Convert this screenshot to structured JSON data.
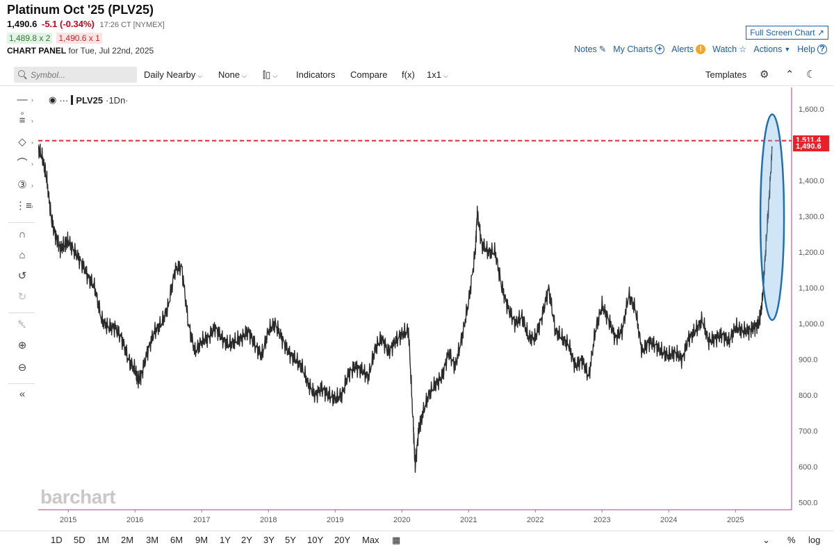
{
  "header": {
    "title": "Platinum Oct '25 (PLV25)",
    "last": "1,490.6",
    "change": "-5.1 (-0.34%)",
    "time": "17:26 CT [NYMEX]",
    "bid": "1,489.8 x 2",
    "ask": "1,490.6 x 1",
    "panel_label": "CHART PANEL",
    "panel_date": "for Tue, Jul 22nd, 2025",
    "fullscreen": "Full Screen Chart",
    "links": {
      "notes": "Notes",
      "mycharts": "My Charts",
      "alerts": "Alerts",
      "watch": "Watch",
      "actions": "Actions",
      "help": "Help"
    }
  },
  "toolbar": {
    "symbol_placeholder": "Symbol...",
    "interval": "Daily Nearby",
    "overlay": "None",
    "indicators": "Indicators",
    "compare": "Compare",
    "fx": "f(x)",
    "layout": "1x1",
    "templates": "Templates"
  },
  "legend": {
    "symbol": "PLV25",
    "interval": "·1Dn·"
  },
  "watermark": "barchart",
  "price_tags": {
    "high": "1,511.4",
    "last": "1,490.6"
  },
  "bottom": {
    "ranges": [
      "1D",
      "5D",
      "1M",
      "2M",
      "3M",
      "6M",
      "9M",
      "1Y",
      "2Y",
      "3Y",
      "5Y",
      "10Y",
      "20Y",
      "Max"
    ],
    "pct": "%",
    "log": "log"
  },
  "colors": {
    "accent": "#1a5ea8",
    "down": "#d0021b",
    "ref_line": "#e8202a",
    "axis": "#b03a8c",
    "highlight": "#1f6fb2"
  },
  "chart_data": {
    "type": "line",
    "title": "",
    "xlabel": "",
    "ylabel": "",
    "ylim": [
      480,
      1660
    ],
    "yticks": [
      500,
      600,
      700,
      800,
      900,
      1000,
      1100,
      1200,
      1300,
      1400,
      1500,
      1600
    ],
    "ytick_labels": [
      "500.0",
      "600.0",
      "700.0",
      "800.0",
      "900.0",
      "1,000.0",
      "1,100.0",
      "1,200.0",
      "1,300.0",
      "1,400.0",
      "1,500.0",
      "1,600.0"
    ],
    "xlim": [
      2014.55,
      2025.82
    ],
    "xticks": [
      2015,
      2016,
      2017,
      2018,
      2019,
      2020,
      2021,
      2022,
      2023,
      2024,
      2025
    ],
    "xtick_labels": [
      "2015",
      "2016",
      "2017",
      "2018",
      "2019",
      "2020",
      "2021",
      "2022",
      "2023",
      "2024",
      "2025"
    ],
    "reference_line": 1511.4,
    "grid": false,
    "series": [
      {
        "x": [
          2014.55,
          2014.62,
          2014.68,
          2014.75,
          2014.82,
          2014.88,
          2014.95,
          2015.0,
          2015.1,
          2015.2,
          2015.3,
          2015.4,
          2015.5,
          2015.6,
          2015.7,
          2015.8,
          2015.9,
          2016.0,
          2016.05,
          2016.1,
          2016.2,
          2016.3,
          2016.4,
          2016.5,
          2016.6,
          2016.7,
          2016.8,
          2016.9,
          2017.0,
          2017.1,
          2017.2,
          2017.3,
          2017.4,
          2017.5,
          2017.6,
          2017.7,
          2017.8,
          2017.9,
          2018.0,
          2018.1,
          2018.2,
          2018.3,
          2018.4,
          2018.5,
          2018.6,
          2018.7,
          2018.8,
          2018.9,
          2019.0,
          2019.1,
          2019.2,
          2019.3,
          2019.4,
          2019.5,
          2019.6,
          2019.7,
          2019.8,
          2019.9,
          2020.0,
          2020.1,
          2020.17,
          2020.2,
          2020.25,
          2020.3,
          2020.4,
          2020.5,
          2020.6,
          2020.7,
          2020.8,
          2020.9,
          2021.0,
          2021.1,
          2021.13,
          2021.2,
          2021.3,
          2021.4,
          2021.5,
          2021.6,
          2021.7,
          2021.8,
          2021.9,
          2022.0,
          2022.1,
          2022.2,
          2022.3,
          2022.4,
          2022.5,
          2022.6,
          2022.7,
          2022.8,
          2022.9,
          2023.0,
          2023.1,
          2023.2,
          2023.3,
          2023.4,
          2023.5,
          2023.6,
          2023.7,
          2023.8,
          2023.9,
          2024.0,
          2024.1,
          2024.2,
          2024.3,
          2024.4,
          2024.5,
          2024.6,
          2024.7,
          2024.8,
          2024.9,
          2025.0,
          2025.1,
          2025.2,
          2025.28,
          2025.35,
          2025.4,
          2025.45,
          2025.5,
          2025.55
        ],
        "y": [
          1490,
          1460,
          1400,
          1290,
          1240,
          1210,
          1220,
          1230,
          1200,
          1170,
          1130,
          1100,
          1010,
          990,
          990,
          960,
          900,
          870,
          840,
          860,
          930,
          980,
          1000,
          1050,
          1150,
          1160,
          1000,
          920,
          950,
          960,
          990,
          960,
          940,
          950,
          960,
          980,
          940,
          910,
          980,
          1000,
          960,
          920,
          900,
          880,
          830,
          800,
          820,
          800,
          790,
          800,
          860,
          880,
          870,
          850,
          930,
          960,
          920,
          950,
          970,
          980,
          720,
          600,
          700,
          740,
          800,
          830,
          850,
          920,
          880,
          960,
          1060,
          1200,
          1310,
          1220,
          1200,
          1200,
          1100,
          1040,
          1000,
          1020,
          960,
          960,
          1020,
          1100,
          980,
          960,
          940,
          880,
          900,
          850,
          980,
          1050,
          1010,
          960,
          980,
          1080,
          1040,
          920,
          950,
          940,
          920,
          910,
          920,
          900,
          960,
          980,
          1010,
          950,
          960,
          970,
          950,
          990,
          980,
          980,
          990,
          1000,
          1060,
          1200,
          1340,
          1490
        ]
      }
    ]
  }
}
